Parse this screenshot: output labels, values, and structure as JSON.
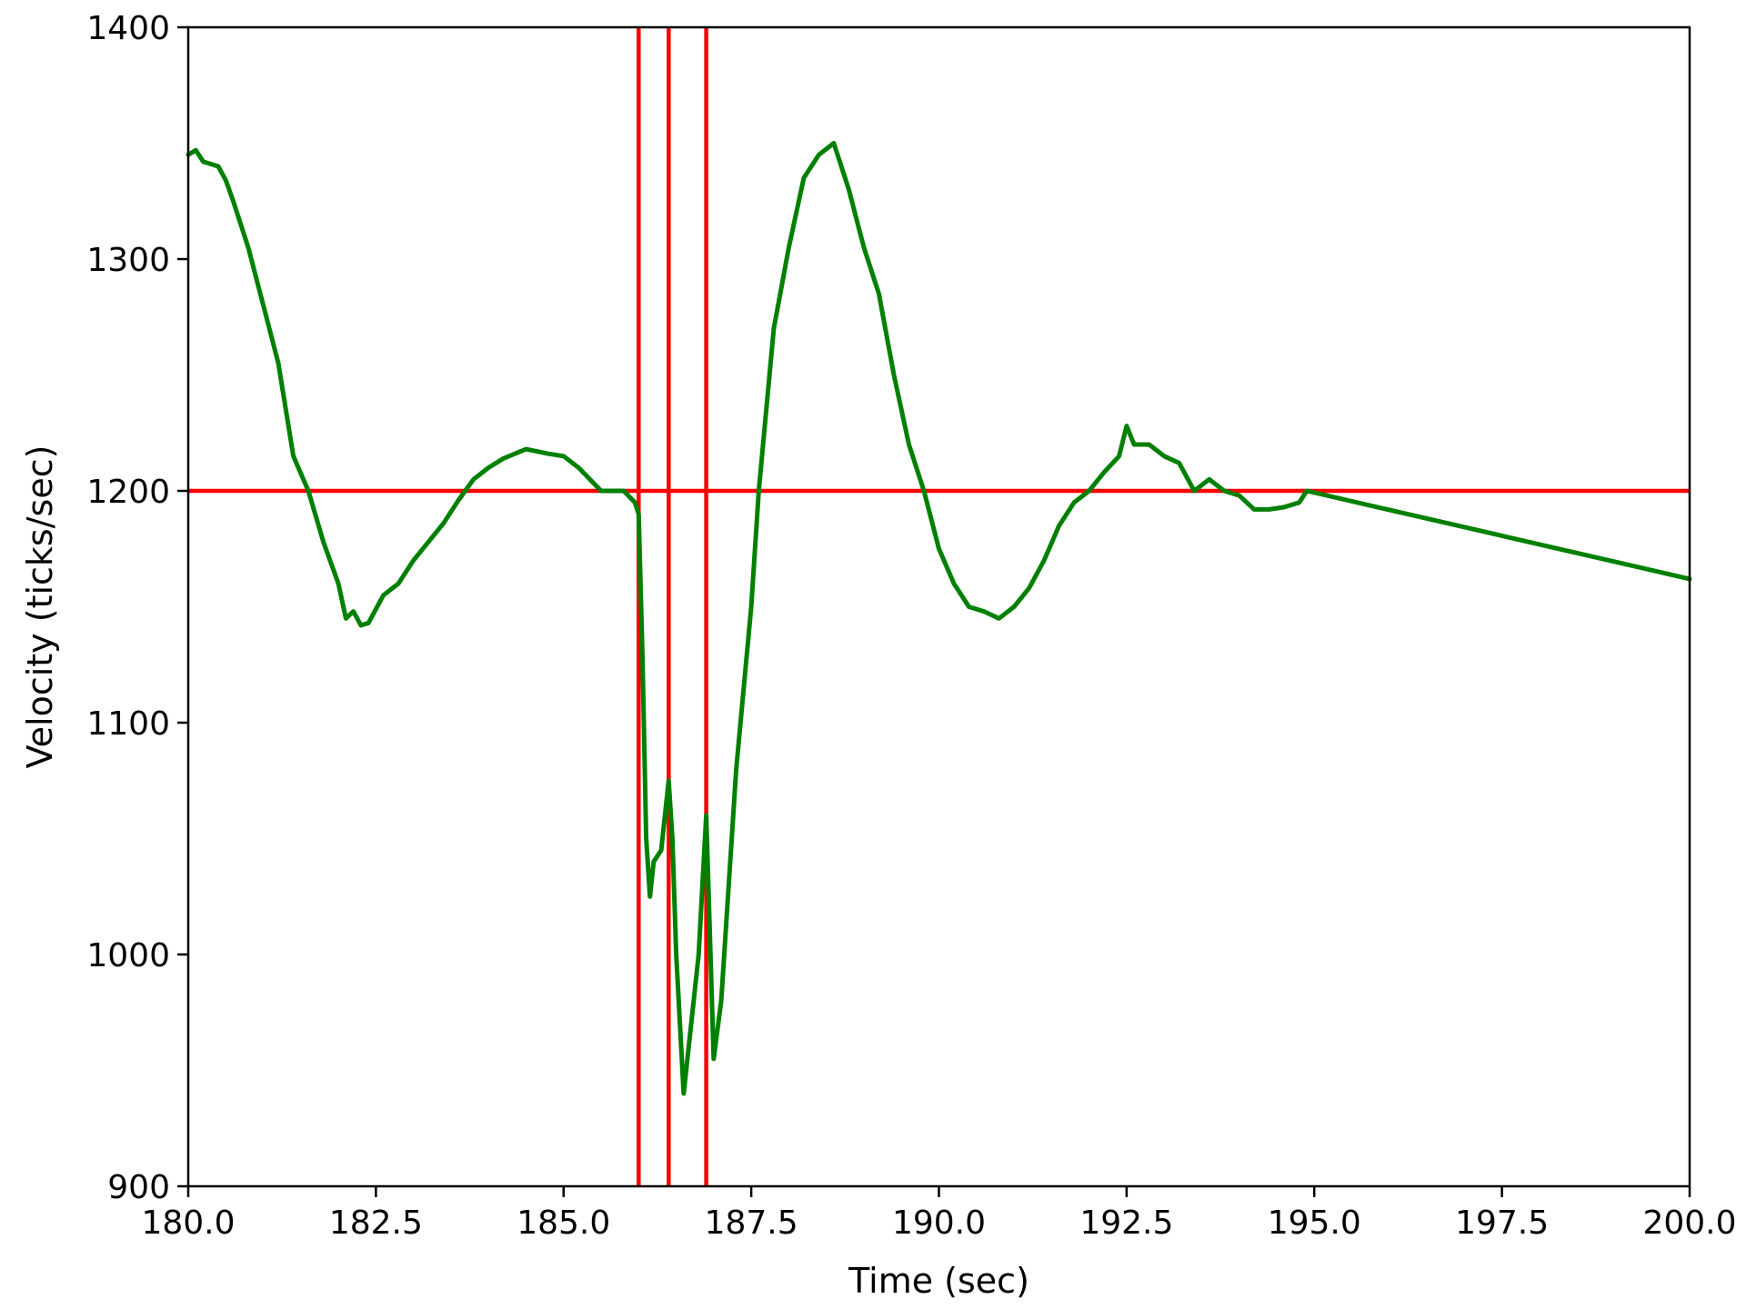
{
  "chart_data": {
    "type": "line",
    "title": "",
    "xlabel": "Time (sec)",
    "ylabel": "Velocity (ticks/sec)",
    "xlim": [
      180.0,
      200.0
    ],
    "ylim": [
      900,
      1400
    ],
    "xticks": [
      180.0,
      182.5,
      185.0,
      187.5,
      190.0,
      192.5,
      195.0,
      197.5,
      200.0
    ],
    "xtick_labels": [
      "180.0",
      "182.5",
      "185.0",
      "187.5",
      "190.0",
      "192.5",
      "195.0",
      "197.5",
      "200.0"
    ],
    "yticks": [
      900,
      1000,
      1100,
      1200,
      1300,
      1400
    ],
    "ytick_labels": [
      "900",
      "1000",
      "1100",
      "1200",
      "1300",
      "1400"
    ],
    "grid": false,
    "legend": "none",
    "colors": {
      "series": "#008000",
      "reference": "#ff0000",
      "axes": "#000000"
    },
    "series": [
      {
        "x": [
          180.0,
          180.1,
          180.2,
          180.4,
          180.5,
          180.6,
          180.8,
          181.0,
          181.2,
          181.4,
          181.6,
          181.8,
          182.0,
          182.1,
          182.2,
          182.3,
          182.4,
          182.6,
          182.8,
          183.0,
          183.2,
          183.4,
          183.6,
          183.8,
          184.0,
          184.2,
          184.5,
          184.8,
          185.0,
          185.2,
          185.5,
          185.8,
          185.95,
          186.0,
          186.05,
          186.1,
          186.15,
          186.2,
          186.3,
          186.4,
          186.45,
          186.5,
          186.6,
          186.8,
          186.9,
          187.0,
          187.1,
          187.3,
          187.5,
          187.6,
          187.8,
          188.0,
          188.2,
          188.4,
          188.6,
          188.8,
          189.0,
          189.2,
          189.4,
          189.6,
          189.8,
          190.0,
          190.2,
          190.4,
          190.6,
          190.8,
          191.0,
          191.2,
          191.4,
          191.6,
          191.8,
          192.0,
          192.2,
          192.4,
          192.5,
          192.6,
          192.8,
          193.0,
          193.2,
          193.4,
          193.6,
          193.8,
          194.0,
          194.2,
          194.4,
          194.6,
          194.8,
          194.9,
          200.0
        ],
        "y": [
          1345,
          1347,
          1342,
          1340,
          1334,
          1325,
          1305,
          1280,
          1255,
          1215,
          1200,
          1178,
          1160,
          1145,
          1148,
          1142,
          1143,
          1155,
          1160,
          1170,
          1178,
          1186,
          1196,
          1205,
          1210,
          1214,
          1218,
          1216,
          1215,
          1210,
          1200,
          1200,
          1195,
          1190,
          1130,
          1050,
          1025,
          1040,
          1045,
          1075,
          1050,
          1000,
          940,
          1000,
          1060,
          955,
          980,
          1080,
          1150,
          1200,
          1270,
          1305,
          1335,
          1345,
          1350,
          1330,
          1305,
          1285,
          1250,
          1220,
          1200,
          1175,
          1160,
          1150,
          1148,
          1145,
          1150,
          1158,
          1170,
          1185,
          1195,
          1200,
          1208,
          1215,
          1228,
          1220,
          1220,
          1215,
          1212,
          1200,
          1205,
          1200,
          1198,
          1192,
          1192,
          1193,
          1195,
          1200,
          1162
        ]
      }
    ],
    "reference_lines": {
      "horizontal": [
        1200
      ],
      "vertical": [
        186.0,
        186.4,
        186.9
      ]
    }
  }
}
